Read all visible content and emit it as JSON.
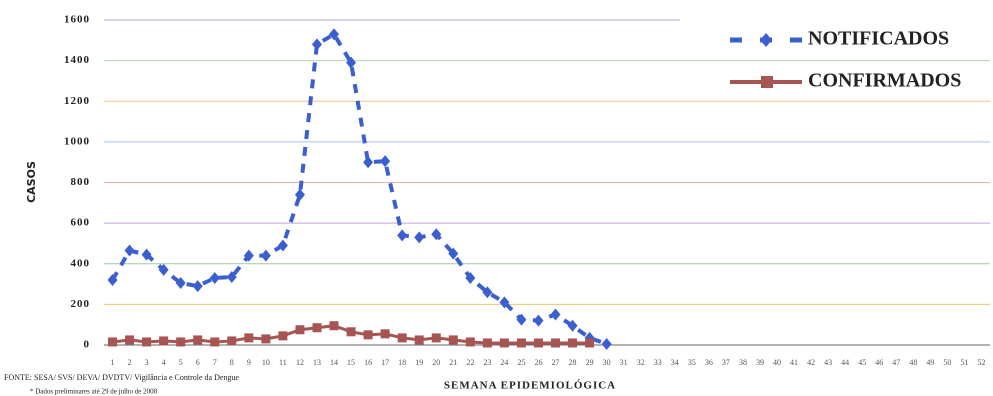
{
  "chart_data": {
    "type": "line",
    "x_label": "SEMANA EPIDEMIOLÓGICA",
    "y_label": "CASOS",
    "source": "FONTE: SESA/ SVS/ DEVA/ DVDTV/ Vigilância e Controle da Dengue",
    "note": "* Dados preliminares até 29 de julho de 2008",
    "legend": "top-right",
    "grid": true,
    "categories": [
      1,
      2,
      3,
      4,
      5,
      6,
      7,
      8,
      9,
      10,
      11,
      12,
      13,
      14,
      15,
      16,
      17,
      18,
      19,
      20,
      21,
      22,
      23,
      24,
      25,
      26,
      27,
      28,
      29,
      30,
      31,
      32,
      33,
      34,
      35,
      36,
      37,
      38,
      39,
      40,
      41,
      42,
      43,
      44,
      45,
      46,
      47,
      48,
      49,
      50,
      51,
      52
    ],
    "ylim": [
      0,
      1600
    ],
    "yticks": [
      0,
      200,
      400,
      600,
      800,
      1000,
      1200,
      1400,
      1600
    ],
    "series": [
      {
        "name": "NOTIFICADOS",
        "color": "#3b5fcf",
        "values": [
          320,
          465,
          445,
          370,
          305,
          290,
          330,
          335,
          440,
          440,
          490,
          740,
          1480,
          1530,
          1390,
          900,
          905,
          540,
          530,
          545,
          450,
          330,
          260,
          210,
          125,
          120,
          150,
          95,
          35,
          5,
          null,
          null,
          null,
          null,
          null,
          null,
          null,
          null,
          null,
          null,
          null,
          null,
          null,
          null,
          null,
          null,
          null,
          null,
          null,
          null,
          null,
          null
        ]
      },
      {
        "name": "CONFIRMADOS",
        "color": "#a65552",
        "values": [
          15,
          25,
          15,
          20,
          15,
          25,
          15,
          20,
          35,
          30,
          45,
          75,
          85,
          95,
          65,
          50,
          55,
          35,
          25,
          35,
          25,
          15,
          10,
          10,
          10,
          10,
          10,
          10,
          10,
          null,
          null,
          null,
          null,
          null,
          null,
          null,
          null,
          null,
          null,
          null,
          null,
          null,
          null,
          null,
          null,
          null,
          null,
          null,
          null,
          null,
          null,
          null
        ]
      }
    ]
  }
}
